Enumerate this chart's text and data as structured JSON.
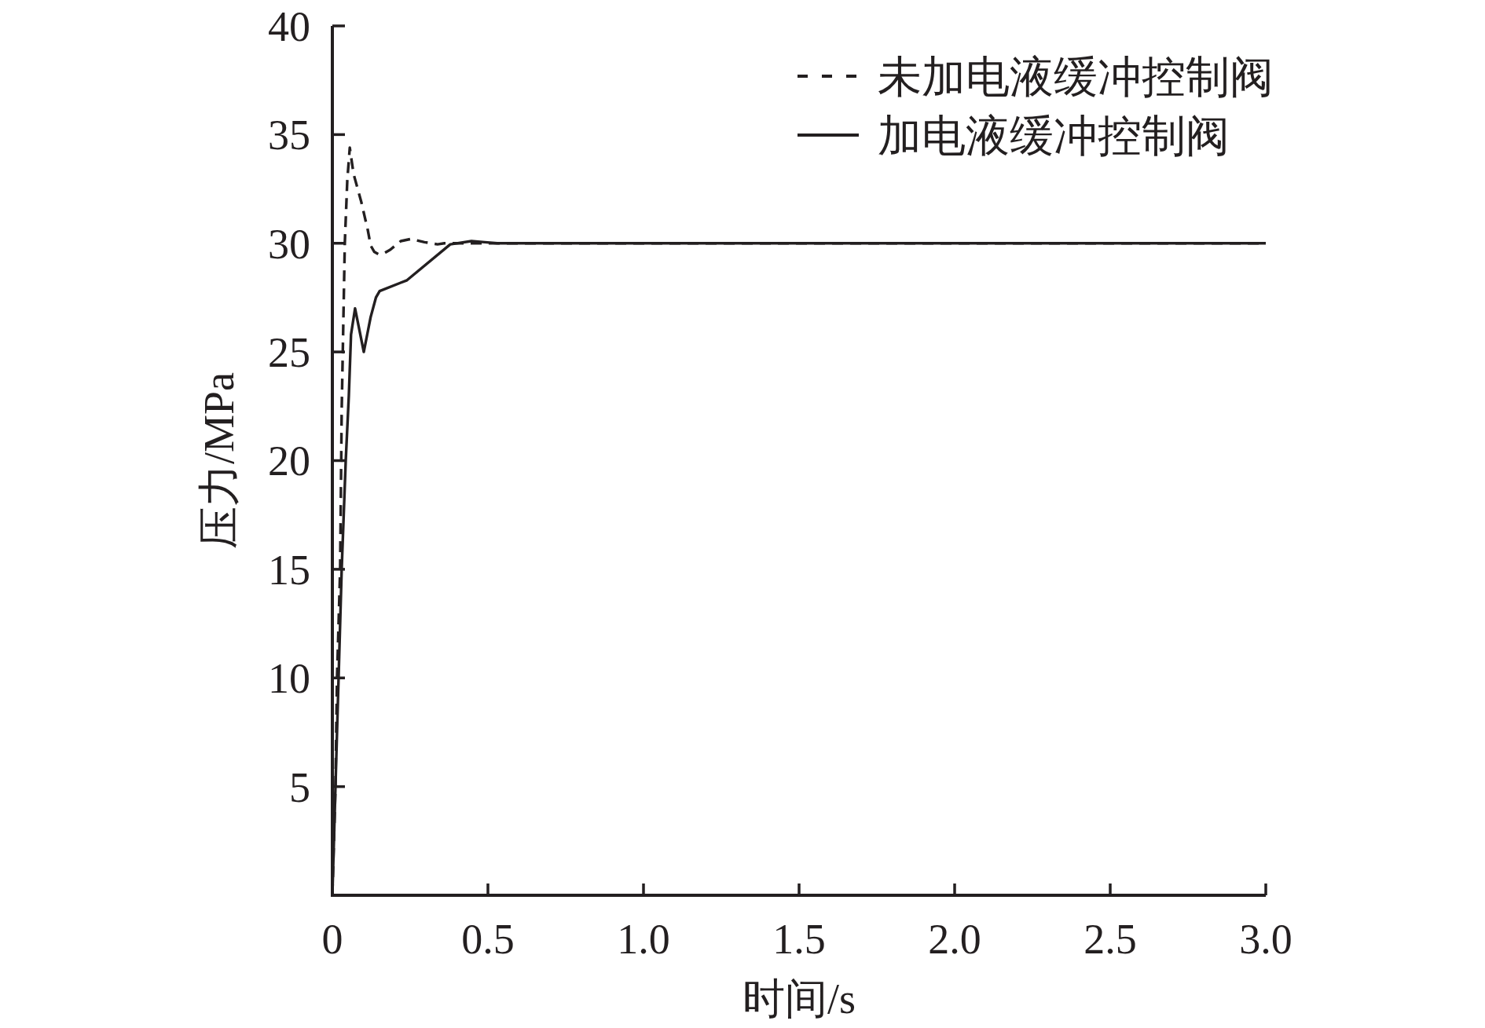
{
  "chart_data": {
    "type": "line",
    "xlabel": "时间/s",
    "ylabel": "压力/MPa",
    "xlim": [
      0,
      3.0
    ],
    "xticks": [
      0,
      0.5,
      {
        "value": 1,
        "label": "1.0"
      },
      1.5,
      {
        "value": 2,
        "label": "2.0"
      },
      2.5,
      {
        "value": 3,
        "label": "3.0"
      }
    ],
    "ylim": [
      0,
      40
    ],
    "yticks": [
      5,
      10,
      15,
      20,
      25,
      30,
      35,
      40
    ],
    "legend": "top right",
    "series": [
      {
        "name": "未加电液缓冲控制阀",
        "color": "#231f20",
        "line_style": "dashed",
        "x": [
          0,
          0.01,
          0.015,
          0.025,
          0.03,
          0.04,
          0.048,
          0.056,
          0.068,
          0.093,
          0.114,
          0.123,
          0.135,
          0.148,
          0.167,
          0.186,
          0.22,
          0.253,
          0.296,
          0.338,
          0.36,
          3.0
        ],
        "values": [
          0,
          5,
          10,
          15,
          22.3,
          30,
          32.9,
          34.4,
          33.2,
          31.9,
          30.6,
          29.9,
          29.6,
          29.5,
          29.55,
          29.7,
          30.1,
          30.2,
          30.05,
          29.95,
          30,
          30
        ]
      },
      {
        "name": "加电液缓冲控制阀",
        "color": "#231f20",
        "line_style": "solid",
        "x": [
          0,
          0.02,
          0.03,
          0.043,
          0.053,
          0.06,
          0.073,
          0.087,
          0.101,
          0.112,
          0.123,
          0.14,
          0.152,
          0.24,
          0.379,
          0.447,
          0.49,
          0.53,
          3.0
        ],
        "values": [
          0,
          10,
          15,
          20,
          23,
          25.8,
          27,
          26,
          25,
          25.8,
          26.6,
          27.5,
          27.8,
          28.3,
          29.95,
          30.1,
          30.05,
          30,
          30
        ]
      }
    ]
  }
}
